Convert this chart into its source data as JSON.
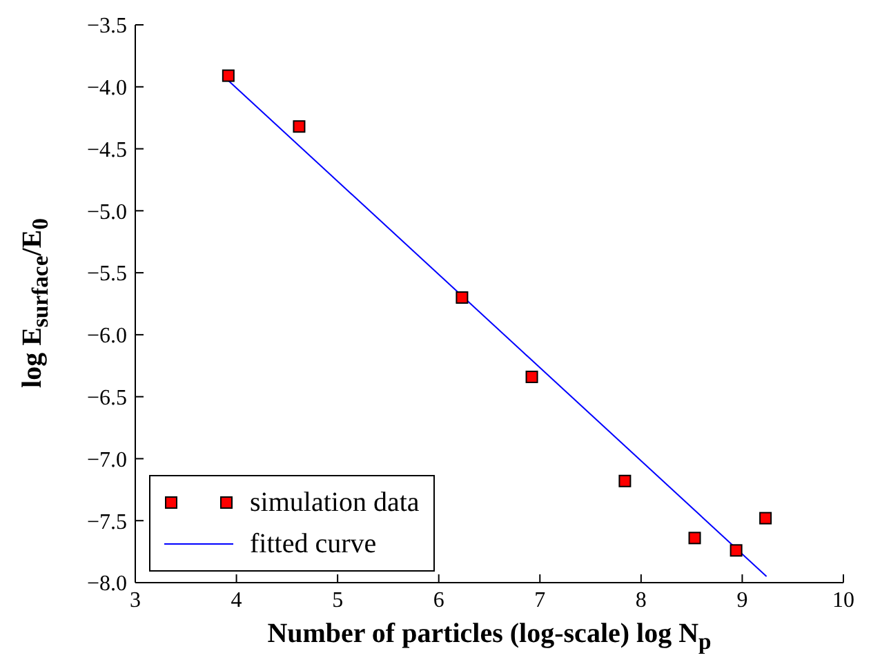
{
  "chart_data": {
    "type": "scatter",
    "xlabel": "Number of particles (log-scale) log N$_{p}$",
    "ylabel": "log E$_{surface}$/E$_{0}$",
    "xlim": [
      3,
      10
    ],
    "xticks": [
      3,
      4,
      5,
      6,
      7,
      8,
      9,
      10
    ],
    "ylim": [
      -8,
      -3.5
    ],
    "yticks": [
      {
        "value": -8,
        "label": "−8.0"
      },
      {
        "value": -7.5,
        "label": "−7.5"
      },
      {
        "value": -7,
        "label": "−7.0"
      },
      {
        "value": -6.5,
        "label": "−6.5"
      },
      {
        "value": -6,
        "label": "−6.0"
      },
      {
        "value": -5.5,
        "label": "−5.5"
      },
      {
        "value": -5,
        "label": "−5.0"
      },
      {
        "value": -4.5,
        "label": "−4.5"
      },
      {
        "value": -4,
        "label": "−4.0"
      },
      {
        "value": -3.5,
        "label": "−3.5"
      }
    ],
    "series": [
      {
        "name": "simulation data",
        "color": "#ff0000",
        "marker": "square",
        "x": [
          3.92,
          4.62,
          6.23,
          6.92,
          7.84,
          8.53,
          8.94,
          9.23
        ],
        "values": [
          -3.91,
          -4.32,
          -5.7,
          -6.34,
          -7.18,
          -7.64,
          -7.74,
          -7.48
        ]
      },
      {
        "name": "fitted curve",
        "type": "line",
        "color": "#0000ff",
        "marker": "none",
        "x": [
          3.92,
          9.24
        ],
        "values": [
          -3.95,
          -7.95
        ]
      }
    ],
    "legend": "bottom left"
  }
}
